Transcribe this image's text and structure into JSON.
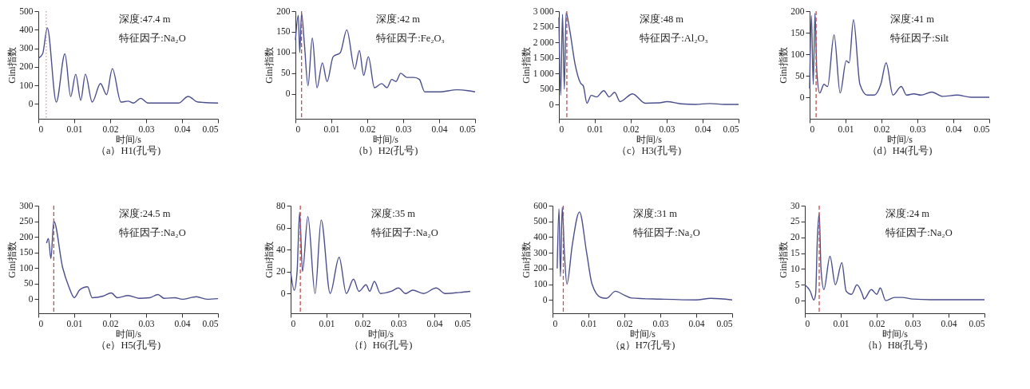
{
  "chart_data": [
    {
      "type": "line",
      "title": "（a）H1(孔号)",
      "xlabel": "时间/s",
      "ylabel": "Gini指数",
      "annotations": [
        "深度:47.4 m",
        "特征因子:Na₂O"
      ],
      "xlim": [
        0,
        0.05
      ],
      "xticks": [
        0,
        0.01,
        0.02,
        0.03,
        0.04,
        0.05
      ],
      "ylim": [
        -80,
        500
      ],
      "yticks": [
        0,
        100,
        200,
        300,
        400,
        500
      ],
      "x": [
        0,
        0.0012,
        0.0025,
        0.005,
        0.0074,
        0.009,
        0.0104,
        0.0118,
        0.0131,
        0.015,
        0.0173,
        0.019,
        0.0206,
        0.023,
        0.025,
        0.0265,
        0.0285,
        0.0305,
        0.037,
        0.039,
        0.0417,
        0.0444,
        0.05
      ],
      "series": [
        {
          "color": "#4b4f8c",
          "values": [
            245,
            270,
            410,
            10,
            270,
            40,
            160,
            20,
            160,
            10,
            110,
            50,
            190,
            10,
            15,
            5,
            30,
            5,
            5,
            5,
            40,
            10,
            5
          ]
        }
      ],
      "ref_lines": [
        {
          "axis": "x",
          "value": 0.0022,
          "color": "#c9a0a0",
          "line_style": "dotted"
        }
      ]
    },
    {
      "type": "line",
      "title": "（b）H2(孔号)",
      "xlabel": "时间/s",
      "ylabel": "Gini指数",
      "annotations": [
        "深度:42 m",
        "特征因子:Fe₂O₃"
      ],
      "xlim": [
        0,
        0.05
      ],
      "xticks": [
        0,
        0.01,
        0.02,
        0.03,
        0.04,
        0.05
      ],
      "ylim": [
        -60,
        200
      ],
      "yticks": [
        0,
        50,
        100,
        150,
        200
      ],
      "x": [
        0,
        0.0008,
        0.0012,
        0.0017,
        0.0025,
        0.0035,
        0.0047,
        0.006,
        0.0075,
        0.0088,
        0.0105,
        0.0125,
        0.0143,
        0.0165,
        0.0178,
        0.019,
        0.0203,
        0.022,
        0.024,
        0.0255,
        0.0268,
        0.028,
        0.0293,
        0.031,
        0.033,
        0.0345,
        0.036,
        0.04,
        0.045,
        0.048,
        0.05
      ],
      "series": [
        {
          "color": "#4b4f8c",
          "values": [
            130,
            190,
            100,
            195,
            120,
            20,
            135,
            15,
            75,
            30,
            90,
            100,
            155,
            60,
            105,
            45,
            90,
            15,
            25,
            15,
            35,
            30,
            50,
            40,
            40,
            35,
            5,
            5,
            10,
            8,
            5
          ]
        }
      ],
      "ref_lines": [
        {
          "axis": "x",
          "value": 0.0017,
          "color": "#c0504d",
          "line_style": "dashed"
        }
      ]
    },
    {
      "type": "line",
      "title": "（c）H3(孔号)",
      "xlabel": "时间/s",
      "ylabel": "Gini指数",
      "annotations": [
        "深度:48 m",
        "特征因子:Al₂O₃"
      ],
      "xlim": [
        0,
        0.05
      ],
      "xticks": [
        0,
        0.01,
        0.02,
        0.03,
        0.04,
        0.05
      ],
      "ylim": [
        -450,
        3000
      ],
      "yticks": [
        0,
        500,
        {
          "value": 1000,
          "label": "1 000"
        },
        {
          "value": 1500,
          "label": "1 500"
        },
        {
          "value": 2000,
          "label": "2 000"
        },
        {
          "value": 2500,
          "label": "2 500"
        },
        {
          "value": 3000,
          "label": "3 000"
        }
      ],
      "x": [
        0,
        0.0005,
        0.001,
        0.0015,
        0.002,
        0.003,
        0.0045,
        0.006,
        0.0068,
        0.0078,
        0.009,
        0.0105,
        0.0125,
        0.014,
        0.0155,
        0.017,
        0.0205,
        0.024,
        0.028,
        0.03,
        0.034,
        0.038,
        0.042,
        0.046,
        0.05
      ],
      "series": [
        {
          "color": "#4b4f8c",
          "values": [
            2800,
            300,
            2900,
            500,
            2950,
            2400,
            1300,
            700,
            600,
            50,
            300,
            250,
            450,
            250,
            400,
            100,
            350,
            50,
            60,
            100,
            30,
            10,
            40,
            10,
            10
          ]
        }
      ],
      "ref_lines": [
        {
          "axis": "x",
          "value": 0.0022,
          "color": "#c0504d",
          "line_style": "dashed"
        }
      ]
    },
    {
      "type": "line",
      "title": "（d）H4(孔号)",
      "xlabel": "时间/s",
      "ylabel": "Gini指数",
      "annotations": [
        "深度:41 m",
        "特征因子:Silt"
      ],
      "xlim": [
        0,
        0.05
      ],
      "xticks": [
        0,
        0.01,
        0.02,
        0.03,
        0.04,
        0.05
      ],
      "ylim": [
        -50,
        200
      ],
      "yticks": [
        0,
        50,
        100,
        150,
        200
      ],
      "x": [
        0,
        0.0005,
        0.001,
        0.0015,
        0.002,
        0.0028,
        0.004,
        0.005,
        0.0068,
        0.0085,
        0.0102,
        0.011,
        0.0122,
        0.014,
        0.016,
        0.018,
        0.0198,
        0.0213,
        0.0232,
        0.0255,
        0.027,
        0.029,
        0.031,
        0.034,
        0.037,
        0.041,
        0.045,
        0.05
      ],
      "series": [
        {
          "color": "#4b4f8c",
          "values": [
            20,
            190,
            30,
            195,
            60,
            10,
            30,
            25,
            145,
            10,
            85,
            80,
            180,
            30,
            5,
            5,
            30,
            80,
            5,
            25,
            5,
            8,
            5,
            12,
            2,
            5,
            0,
            0
          ]
        }
      ],
      "ref_lines": [
        {
          "axis": "x",
          "value": 0.0018,
          "color": "#c0504d",
          "line_style": "dashed"
        }
      ]
    },
    {
      "type": "line",
      "title": "（e）H5(孔号)",
      "xlabel": "时间/s",
      "ylabel": "Gini指数",
      "annotations": [
        "深度:24.5 m",
        "特征因子:Na₂O"
      ],
      "xlim": [
        0,
        0.05
      ],
      "xticks": [
        0,
        0.01,
        0.02,
        0.03,
        0.04,
        0.05
      ],
      "ylim": [
        -45,
        300
      ],
      "yticks": [
        0,
        50,
        100,
        150,
        200,
        250,
        300
      ],
      "x": [
        0.0023,
        0.0028,
        0.0035,
        0.0043,
        0.0068,
        0.0085,
        0.01,
        0.0115,
        0.0137,
        0.015,
        0.018,
        0.0203,
        0.022,
        0.025,
        0.028,
        0.031,
        0.0333,
        0.035,
        0.038,
        0.04,
        0.044,
        0.047,
        0.05
      ],
      "series": [
        {
          "color": "#4b4f8c",
          "values": [
            180,
            195,
            130,
            250,
            100,
            40,
            5,
            30,
            40,
            5,
            10,
            20,
            5,
            12,
            3,
            5,
            15,
            3,
            5,
            0,
            8,
            0,
            2
          ]
        }
      ],
      "ref_lines": [
        {
          "axis": "x",
          "value": 0.0043,
          "color": "#c0504d",
          "line_style": "dashed"
        }
      ]
    },
    {
      "type": "line",
      "title": "（f）H6(孔号)",
      "xlabel": "时间/s",
      "ylabel": "Gini指数",
      "annotations": [
        "深度:35 m",
        "特征因子:Na₂O"
      ],
      "xlim": [
        0,
        0.05
      ],
      "xticks": [
        0,
        0.01,
        0.02,
        0.03,
        0.04,
        0.05
      ],
      "ylim": [
        -18,
        80
      ],
      "yticks": [
        0,
        20,
        40,
        60,
        80
      ],
      "x": [
        0,
        0.001,
        0.0018,
        0.0025,
        0.0033,
        0.0048,
        0.0068,
        0.0085,
        0.011,
        0.0135,
        0.0155,
        0.0175,
        0.019,
        0.021,
        0.022,
        0.0233,
        0.025,
        0.028,
        0.03,
        0.032,
        0.034,
        0.037,
        0.0405,
        0.043,
        0.047,
        0.05
      ],
      "series": [
        {
          "color": "#4b4f8c",
          "values": [
            20,
            3,
            20,
            74,
            20,
            70,
            0,
            67,
            0,
            33,
            0,
            13,
            2,
            8,
            2,
            11,
            0,
            2,
            5,
            0,
            3,
            0,
            5,
            0,
            1,
            2
          ]
        }
      ],
      "ref_lines": [
        {
          "axis": "x",
          "value": 0.0027,
          "color": "#c0504d",
          "line_style": "dashed"
        }
      ]
    },
    {
      "type": "line",
      "title": "（g）H7(孔号)",
      "xlabel": "时间/s",
      "ylabel": "Gini指数",
      "annotations": [
        "深度:31 m",
        "特征因子:Na₂O"
      ],
      "xlim": [
        0,
        0.05
      ],
      "xticks": [
        0,
        0.01,
        0.02,
        0.03,
        0.04,
        0.05
      ],
      "ylim": [
        -85,
        600
      ],
      "yticks": [
        0,
        100,
        200,
        300,
        400,
        500,
        600
      ],
      "x": [
        0.0013,
        0.0018,
        0.0022,
        0.0027,
        0.0033,
        0.004,
        0.0055,
        0.0075,
        0.0095,
        0.011,
        0.0135,
        0.015,
        0.0175,
        0.02,
        0.022,
        0.03,
        0.04,
        0.044,
        0.05
      ],
      "series": [
        {
          "color": "#4b4f8c",
          "values": [
            200,
            580,
            150,
            590,
            300,
            100,
            350,
            560,
            300,
            100,
            15,
            10,
            55,
            30,
            12,
            5,
            0,
            10,
            0
          ]
        }
      ],
      "ref_lines": [
        {
          "axis": "x",
          "value": 0.003,
          "color": "#c0504d",
          "line_style": "dashed"
        }
      ]
    },
    {
      "type": "line",
      "title": "（h）H8(孔号)",
      "xlabel": "时间/s",
      "ylabel": "Gini指数",
      "annotations": [
        "深度:24 m",
        "特征因子:Na₂O"
      ],
      "xlim": [
        0,
        0.05
      ],
      "xticks": [
        0,
        0.01,
        0.02,
        0.03,
        0.04,
        0.05
      ],
      "ylim": [
        -4,
        30
      ],
      "yticks": [
        0,
        5,
        10,
        15,
        20,
        25,
        30
      ],
      "x": [
        0,
        0.0015,
        0.0025,
        0.003,
        0.0035,
        0.004,
        0.0045,
        0.0053,
        0.007,
        0.0085,
        0.0103,
        0.0115,
        0.013,
        0.0145,
        0.016,
        0.0165,
        0.0185,
        0.02,
        0.021,
        0.0225,
        0.025,
        0.027,
        0.03,
        0.035,
        0.04,
        0.05
      ],
      "series": [
        {
          "color": "#4b4f8c",
          "values": [
            5,
            3,
            0.2,
            2,
            20,
            27.5,
            10,
            3.5,
            14,
            5,
            12,
            3,
            2,
            5,
            2,
            0.5,
            3.5,
            2,
            4,
            0,
            1,
            1,
            0.5,
            0.3,
            0.3,
            0.3
          ]
        }
      ],
      "ref_lines": [
        {
          "axis": "x",
          "value": 0.004,
          "color": "#c0504d",
          "line_style": "dashed"
        }
      ]
    }
  ]
}
